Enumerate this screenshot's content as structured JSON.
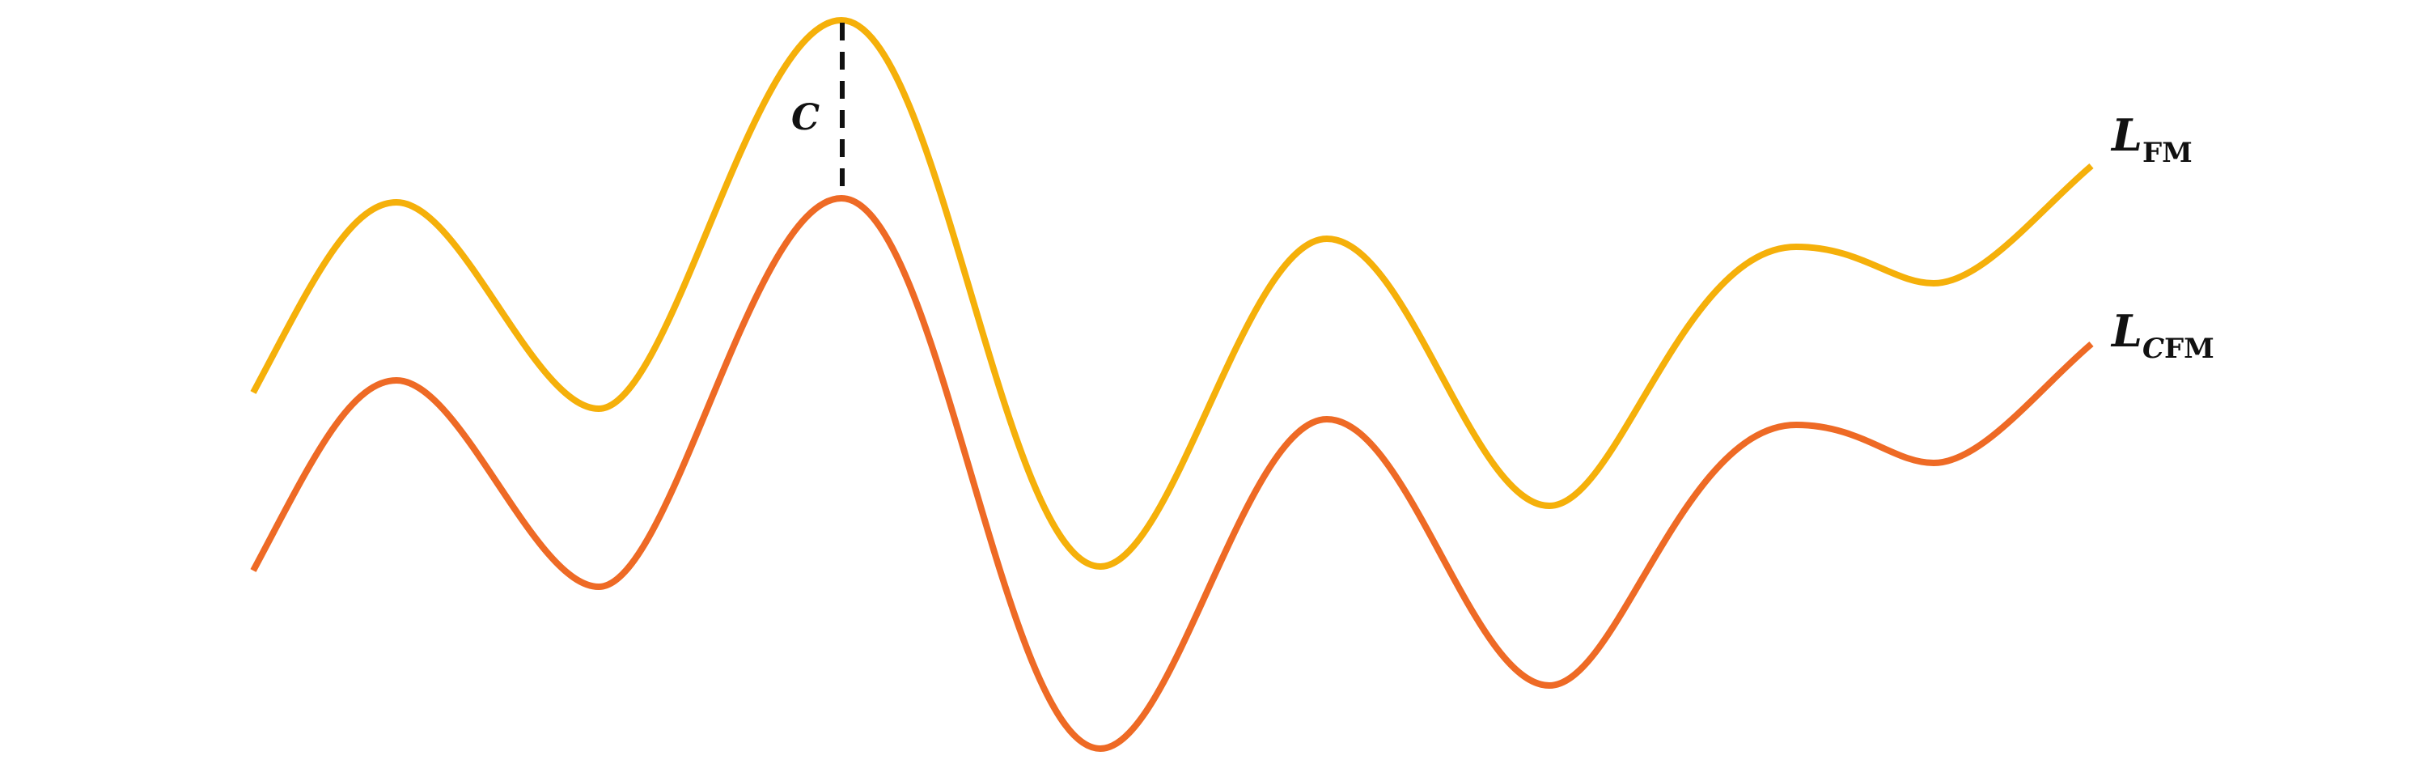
{
  "diagram": {
    "gap_label": "C",
    "curves": [
      {
        "id": "fm",
        "label_main": "L",
        "label_sub_italic": "",
        "label_sub": "FM",
        "color": "#F5B00A"
      },
      {
        "id": "cfm",
        "label_main": "L",
        "label_sub_italic": "C",
        "label_sub": "FM",
        "color": "#EE6A25"
      }
    ]
  }
}
